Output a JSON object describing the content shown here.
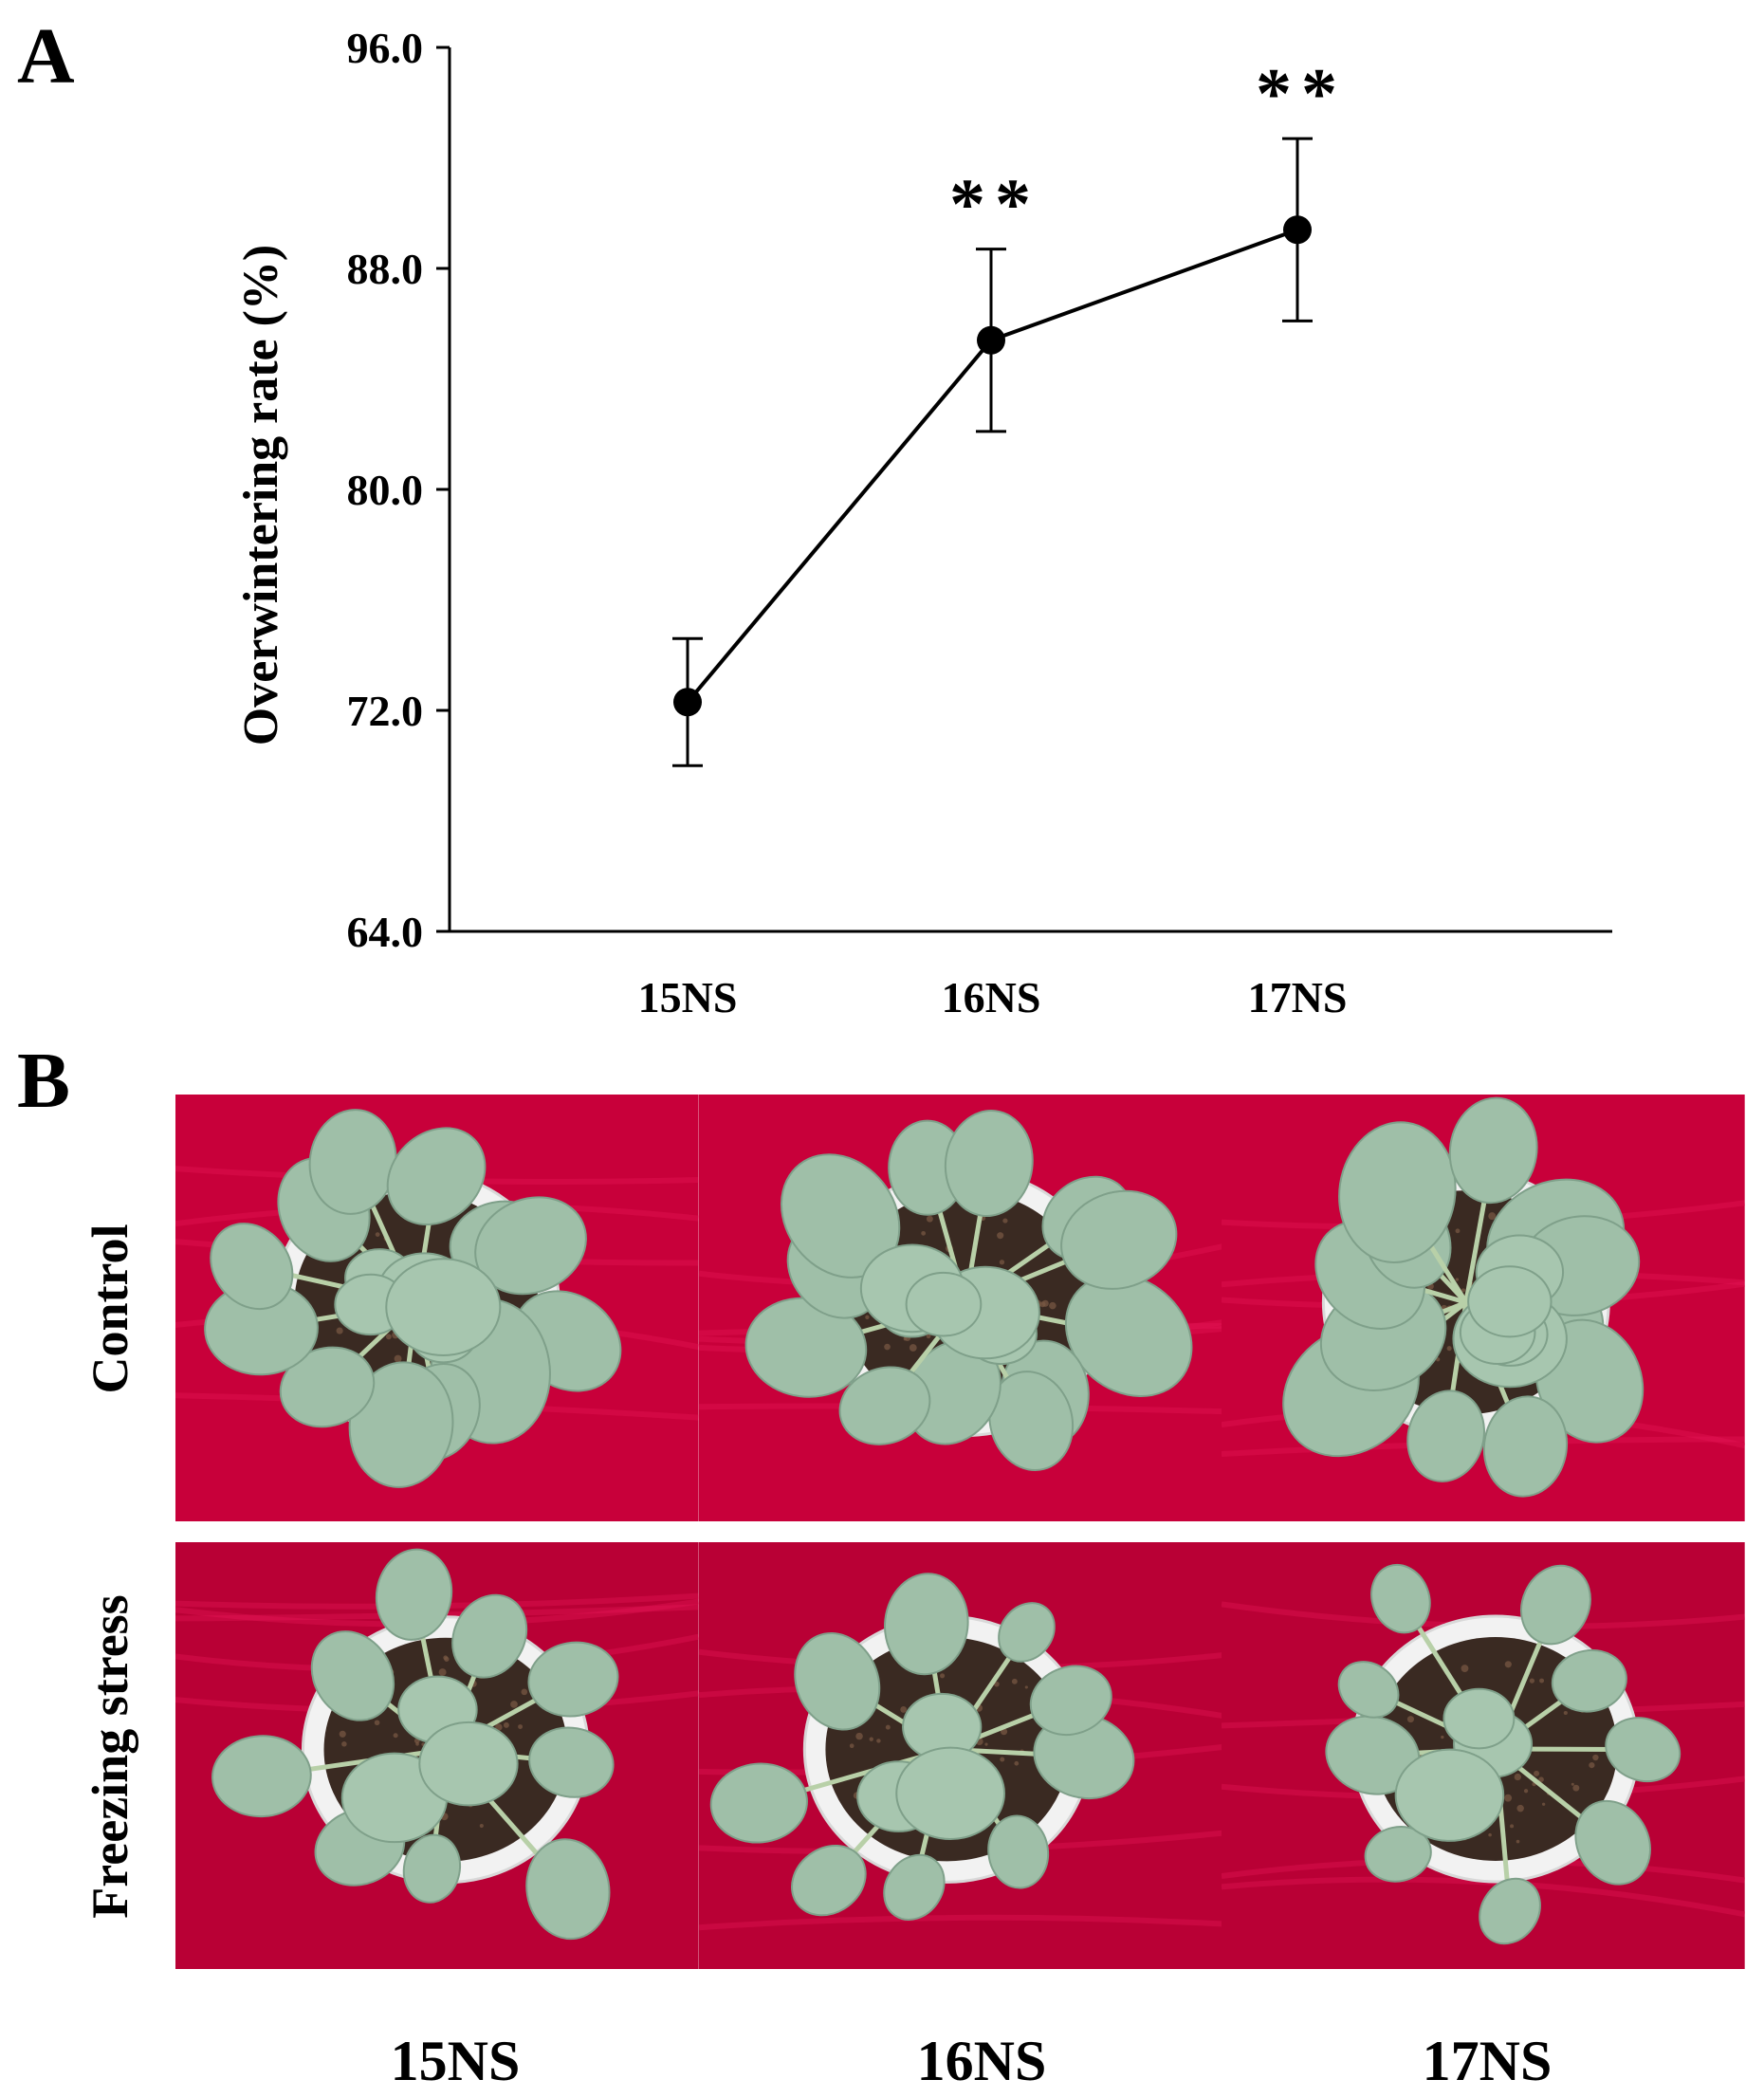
{
  "panel_a_label": "A",
  "panel_b_label": "B",
  "chart_data": {
    "type": "line",
    "title": "",
    "xlabel": "",
    "ylabel": "Overwintering rate (%)",
    "categories": [
      "15NS",
      "16NS",
      "17NS"
    ],
    "series": [
      {
        "values": [
          72.3,
          85.4,
          89.4
        ],
        "error": [
          2.3,
          3.3,
          3.3
        ],
        "annotations": [
          "",
          "**",
          "**"
        ]
      }
    ],
    "ylim": [
      64.0,
      96.0
    ],
    "yticks": [
      "64.0",
      "72.0",
      "80.0",
      "88.0",
      "96.0"
    ],
    "grid": false,
    "legend": "none",
    "line_color": "#000000",
    "marker_color": "#000000"
  },
  "photo_panel": {
    "row_labels": [
      "Control",
      "Freezing stress"
    ],
    "column_labels": [
      "15NS",
      "16NS",
      "17NS"
    ],
    "background_color": "#c8003a",
    "leaf_color": "#9fbfa8",
    "pot_color": "#f2f2f2",
    "soil_color": "#3a2a22"
  }
}
